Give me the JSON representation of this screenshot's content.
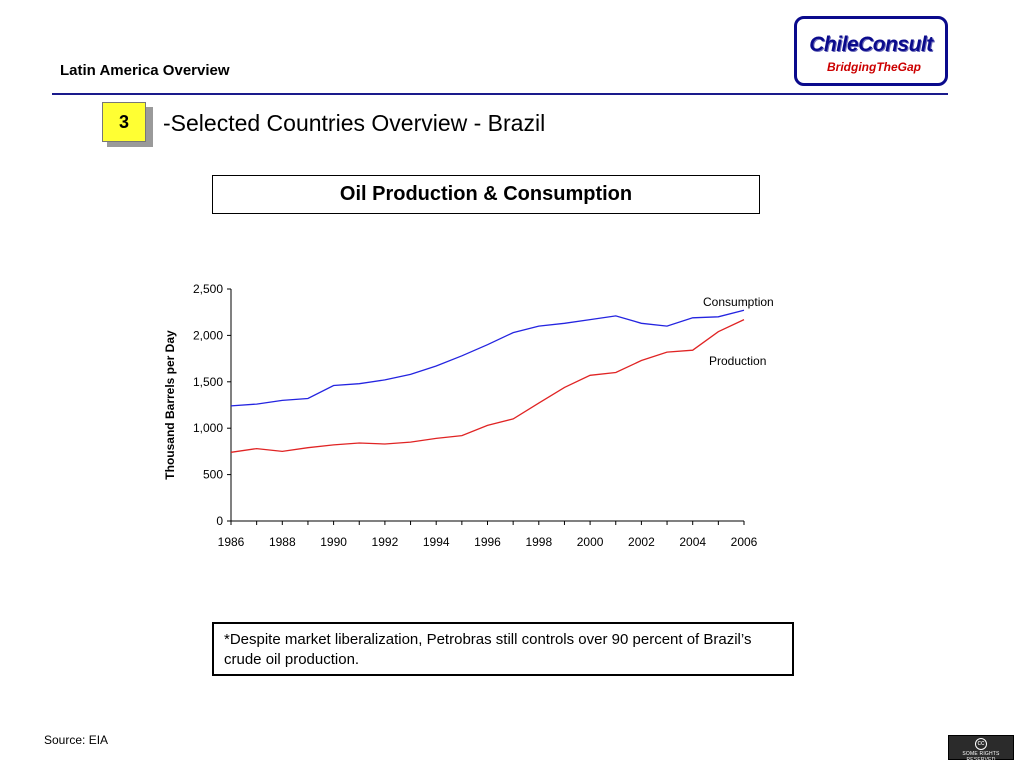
{
  "header": {
    "title": "Latin America Overview"
  },
  "logo": {
    "name": "ChileConsult",
    "tagline": "BridgingTheGap",
    "color": "#0a0a8c",
    "tagline_color": "#cc0000"
  },
  "section": {
    "number": "3",
    "title": "-Selected Countries Overview - Brazil"
  },
  "chart_box_title": "Oil Production & Consumption",
  "chart_data": {
    "type": "line",
    "title": "Oil Production & Consumption",
    "xlabel": "",
    "ylabel": "Thousand Barrels per Day",
    "xlim": [
      1986,
      2006
    ],
    "ylim": [
      0,
      2500
    ],
    "x_ticks": [
      "1986",
      "1988",
      "1990",
      "1992",
      "1994",
      "1996",
      "1998",
      "2000",
      "2002",
      "2004",
      "2006"
    ],
    "y_ticks": [
      "0",
      "500",
      "1,000",
      "1,500",
      "2,000",
      "2,500"
    ],
    "x": [
      1986,
      1987,
      1988,
      1989,
      1990,
      1991,
      1992,
      1993,
      1994,
      1995,
      1996,
      1997,
      1998,
      1999,
      2000,
      2001,
      2002,
      2003,
      2004,
      2005,
      2006
    ],
    "series": [
      {
        "name": "Consumption",
        "color": "#2424e0",
        "values": [
          1240,
          1260,
          1300,
          1320,
          1460,
          1480,
          1520,
          1580,
          1670,
          1780,
          1900,
          2030,
          2100,
          2130,
          2170,
          2210,
          2130,
          2100,
          2190,
          2200,
          2270
        ]
      },
      {
        "name": "Production",
        "color": "#e02424",
        "values": [
          740,
          780,
          750,
          790,
          820,
          840,
          830,
          850,
          890,
          920,
          1030,
          1100,
          1270,
          1440,
          1570,
          1600,
          1730,
          1820,
          1840,
          2040,
          2170
        ]
      }
    ],
    "grid": false,
    "legend": "inline labels at right"
  },
  "note": "*Despite market liberalization, Petrobras still controls over 90 percent of Brazil’s crude oil production.",
  "footer": {
    "source": "Source: EIA",
    "license_icon": "cc-icon",
    "license_text": "SOME RIGHTS RESERVED"
  }
}
